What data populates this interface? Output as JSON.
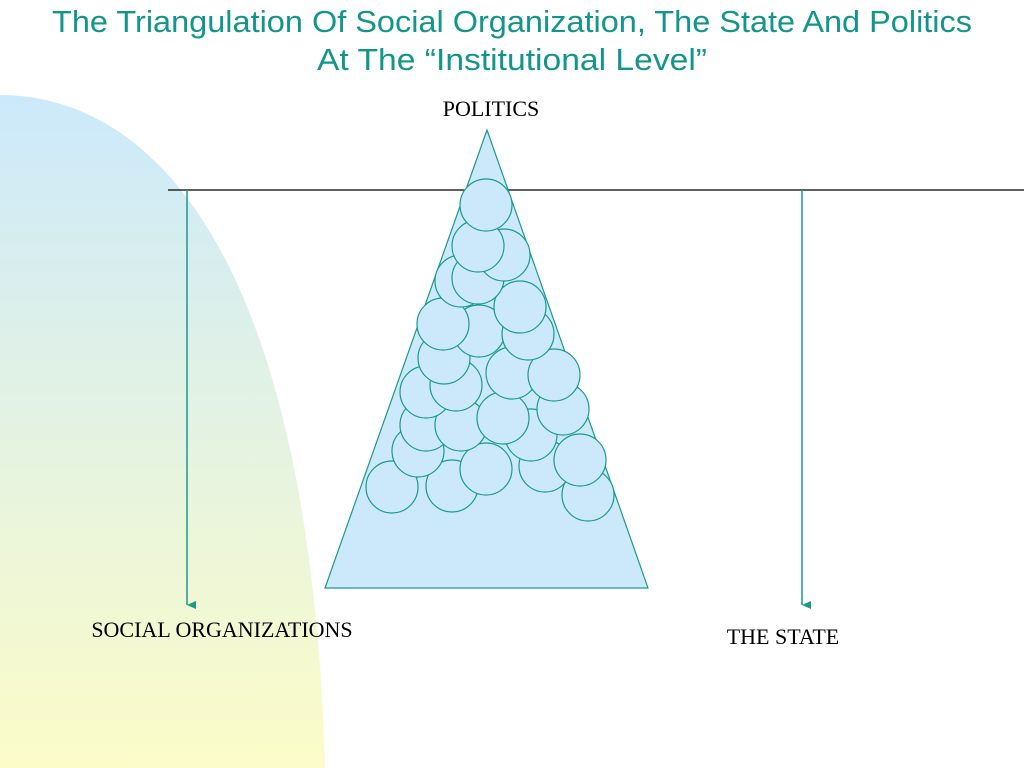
{
  "title": {
    "line1": "The Triangulation Of Social Organization, The State And Politics",
    "line2": "At The “Institutional Level”"
  },
  "labels": {
    "top": "POLITICS",
    "left": "SOCIAL ORGANIZATIONS",
    "right": "THE STATE"
  }
}
